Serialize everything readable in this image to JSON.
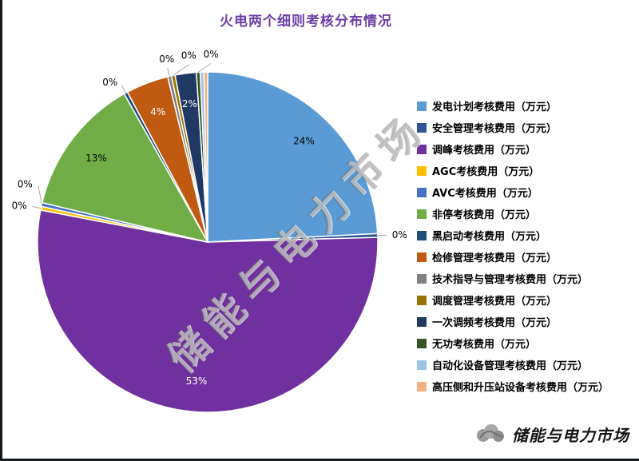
{
  "page": {
    "title": "火电两个细则考核分布情况",
    "watermark_text": "储能与电力市场",
    "brand_text": "储能与电力市场"
  },
  "chart_data": {
    "type": "pie",
    "title": "火电两个细则考核分布情况",
    "legend_position": "right",
    "data_labels": "percent",
    "slices": [
      {
        "label": "发电计划考核费用（万元）",
        "percent": 24,
        "color": "#5B9BD5",
        "label_visible": true
      },
      {
        "label": "安全管理考核费用（万元）",
        "percent": 0,
        "color": "#2F5597",
        "label_visible": true
      },
      {
        "label": "调峰考核费用（万元）",
        "percent": 53,
        "color": "#7030A0",
        "label_visible": true
      },
      {
        "label": "AGC考核费用（万元）",
        "percent": 0,
        "color": "#FFC000",
        "label_visible": true
      },
      {
        "label": "AVC考核费用（万元）",
        "percent": 0,
        "color": "#4472C4",
        "label_visible": true
      },
      {
        "label": "非停考核费用（万元）",
        "percent": 13,
        "color": "#70AD47",
        "label_visible": true
      },
      {
        "label": "黑启动考核费用（万元）",
        "percent": 0,
        "color": "#1F4E79",
        "label_visible": true
      },
      {
        "label": "检修管理考核费用（万元）",
        "percent": 4,
        "color": "#C05A11",
        "label_visible": true
      },
      {
        "label": "技术指导与管理考核费用（万元）",
        "percent": 0,
        "color": "#808080",
        "label_visible": true
      },
      {
        "label": "调度管理考核费用（万元）",
        "percent": 0,
        "color": "#997300",
        "label_visible": true
      },
      {
        "label": "一次调频考核费用（万元）",
        "percent": 2,
        "color": "#1F3864",
        "label_visible": true
      },
      {
        "label": "无功考核费用（万元）",
        "percent": 0,
        "color": "#375623",
        "label_visible": true
      },
      {
        "label": "自动化设备管理考核费用（万元）",
        "percent": 0,
        "color": "#9DC3E6",
        "label_visible": false
      },
      {
        "label": "高压侧和升压站设备考核费用（万元）",
        "percent": 0,
        "color": "#F4B183",
        "label_visible": false
      }
    ]
  }
}
